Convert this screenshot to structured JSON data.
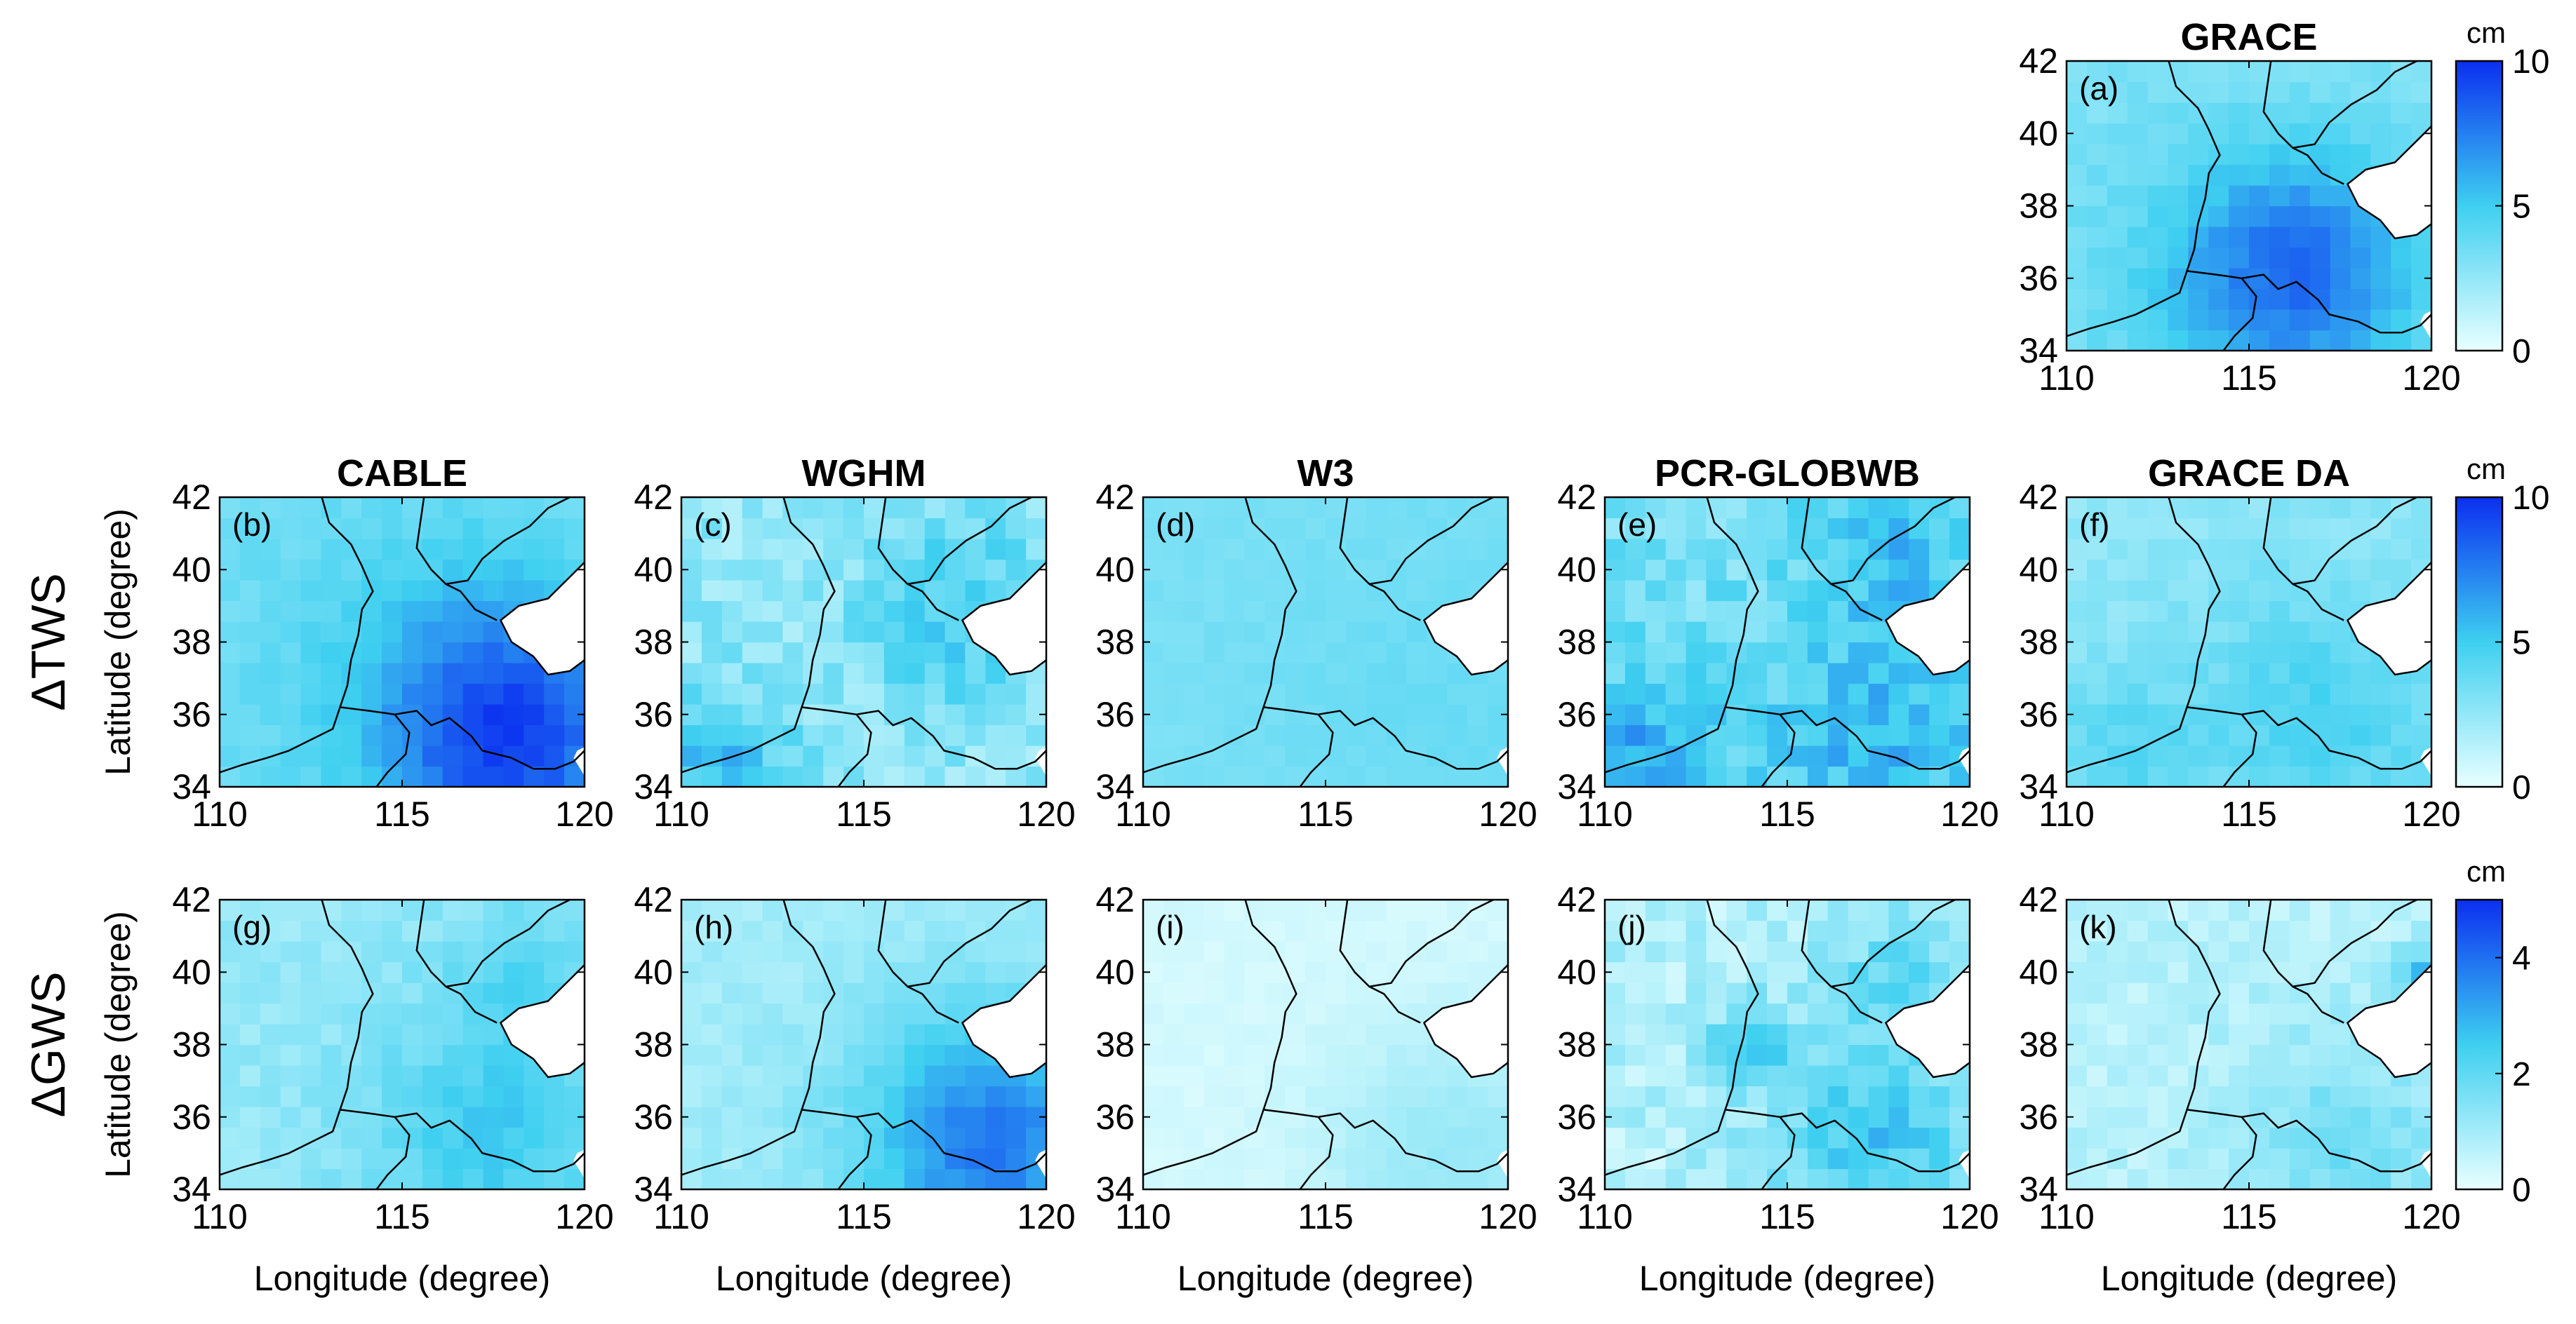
{
  "colors": {
    "low": "#e8ffff",
    "mid": "#3ecff0",
    "high": "#0b2ff0"
  },
  "chart_data": {
    "type": "heatmap",
    "x_range": [
      110,
      120
    ],
    "y_range": [
      34,
      42
    ],
    "x_ticks": [
      "110",
      "115",
      "120"
    ],
    "y_ticks": [
      "34",
      "36",
      "38",
      "40",
      "42"
    ],
    "xlabel": "Longitude (degree)",
    "ylabel": "Latitude (degree)",
    "grid_cells": [
      18,
      14
    ],
    "row_labels": [
      "ΔTWS",
      "ΔGWS"
    ],
    "colorbars": [
      {
        "unit": "cm",
        "ticks": [
          "0",
          "5",
          "10"
        ],
        "max": 10
      },
      {
        "unit": "cm",
        "ticks": [
          "0",
          "5",
          "10"
        ],
        "max": 10
      },
      {
        "unit": "cm",
        "ticks": [
          "0",
          "2",
          "4"
        ],
        "max": 5
      }
    ],
    "panels": [
      {
        "label": "(a)",
        "title": "GRACE",
        "base": 3.0,
        "ripple": 0.8,
        "hot": [
          [
            116.5,
            36.3,
            2.2,
            4.0
          ],
          [
            114.5,
            35.5,
            3.0,
            1.5
          ]
        ]
      },
      {
        "label": "(b)",
        "title": "CABLE",
        "base": 3.5,
        "ripple": 0.8,
        "hot": [
          [
            118.0,
            35.3,
            2.4,
            5.0
          ],
          [
            116.5,
            37.0,
            3.0,
            1.5
          ]
        ]
      },
      {
        "label": "(c)",
        "title": "WGHM",
        "base": 2.5,
        "ripple": 2.2,
        "hot": [
          [
            117.5,
            38.8,
            1.8,
            2.5
          ],
          [
            111.0,
            34.7,
            1.4,
            3.0
          ]
        ]
      },
      {
        "label": "(d)",
        "title": "W3",
        "base": 3.2,
        "ripple": 0.4,
        "hot": [
          [
            118.0,
            36.5,
            3.5,
            0.5
          ]
        ]
      },
      {
        "label": "(e)",
        "title": "PCR-GLOBWB",
        "base": 3.4,
        "ripple": 2.3,
        "hot": [
          [
            117.5,
            35.5,
            2.0,
            2.5
          ],
          [
            111.0,
            34.7,
            1.5,
            3.0
          ],
          [
            118.0,
            40.2,
            1.5,
            2.0
          ]
        ]
      },
      {
        "label": "(f)",
        "title": "GRACE DA",
        "base": 2.6,
        "ripple": 0.9,
        "hot": [
          [
            117.0,
            36.0,
            2.5,
            2.0
          ],
          [
            111.5,
            35.0,
            1.5,
            1.5
          ]
        ]
      },
      {
        "label": "(g)",
        "title": "",
        "base": 1.2,
        "ripple": 0.5,
        "hot": [
          [
            117.5,
            35.5,
            2.5,
            1.3
          ],
          [
            118.5,
            40.0,
            1.5,
            0.8
          ]
        ]
      },
      {
        "label": "(h)",
        "title": "",
        "base": 1.0,
        "ripple": 0.4,
        "hot": [
          [
            118.5,
            35.3,
            2.6,
            2.8
          ]
        ]
      },
      {
        "label": "(i)",
        "title": "",
        "base": 0.3,
        "ripple": 0.2,
        "hot": [
          [
            118.5,
            35.0,
            2.5,
            0.9
          ]
        ]
      },
      {
        "label": "(j)",
        "title": "",
        "base": 0.8,
        "ripple": 1.0,
        "hot": [
          [
            117.5,
            35.5,
            2.0,
            1.8
          ],
          [
            114.0,
            38.0,
            0.8,
            1.8
          ],
          [
            118.0,
            40.0,
            1.2,
            1.2
          ]
        ]
      },
      {
        "label": "(k)",
        "title": "",
        "base": 0.7,
        "ripple": 0.6,
        "hot": [
          [
            117.5,
            35.2,
            2.2,
            1.0
          ],
          [
            119.8,
            39.8,
            0.6,
            2.0
          ]
        ]
      }
    ]
  }
}
